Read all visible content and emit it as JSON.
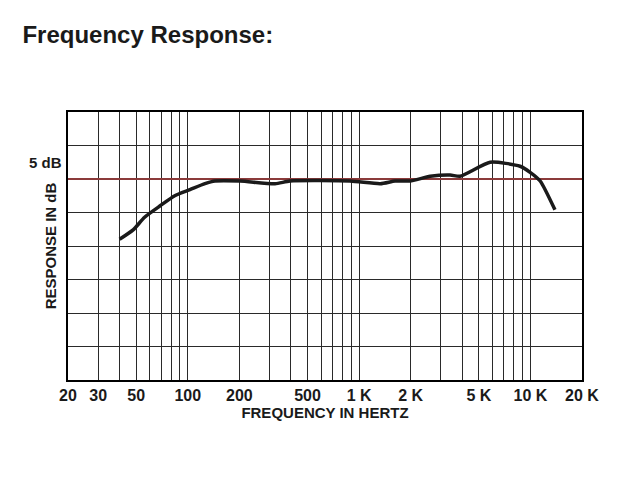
{
  "chart_data": {
    "type": "line",
    "title": "Frequency Response:",
    "x_label": "FREQUENCY IN HERTZ",
    "y_label": "RESPONSE IN dB",
    "annotations": [
      "5 dB"
    ],
    "x": [
      40,
      48,
      56,
      69,
      84,
      103,
      126,
      144,
      202,
      323,
      395,
      885,
      1330,
      1620,
      1980,
      2600,
      3400,
      3880,
      5820,
      8700,
      9960,
      11400,
      13900
    ],
    "values": [
      -9.0,
      -7.6,
      -5.7,
      -4.0,
      -2.5,
      -1.6,
      -0.7,
      -0.3,
      -0.3,
      -0.7,
      -0.3,
      -0.3,
      -0.7,
      -0.3,
      -0.3,
      0.4,
      0.6,
      0.4,
      2.5,
      1.9,
      1.0,
      -0.3,
      -4.6
    ],
    "color": "#1a1a1a",
    "xlim": [
      20,
      20000
    ],
    "xticks": [
      20,
      30,
      50,
      100,
      200,
      500,
      {
        "value": 1000,
        "label": "1 K"
      },
      {
        "value": 2000,
        "label": "2 K"
      },
      {
        "value": 5000,
        "label": "5 K"
      },
      {
        "value": 10000,
        "label": "10 K"
      },
      {
        "value": 20000,
        "label": "20 K"
      }
    ],
    "ylim": [
      -30,
      10
    ],
    "yticks": [
      -30,
      -25,
      -20,
      -15,
      -10,
      -5,
      0,
      5,
      10
    ],
    "log": "x",
    "grid": true,
    "tick_labels": "x"
  }
}
